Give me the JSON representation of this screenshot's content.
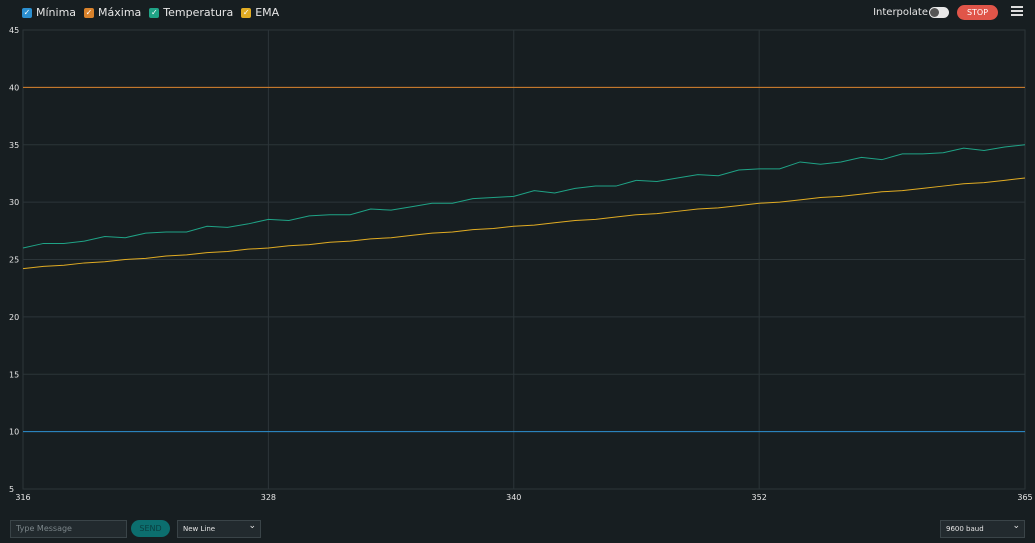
{
  "toolbar": {
    "interpolate_label": "Interpolate",
    "stop_button": "STOP"
  },
  "chart_data": {
    "type": "line",
    "x": [
      316,
      317,
      318,
      319,
      320,
      321,
      322,
      323,
      324,
      325,
      326,
      327,
      328,
      329,
      330,
      331,
      332,
      333,
      334,
      335,
      336,
      337,
      338,
      339,
      340,
      341,
      342,
      343,
      344,
      345,
      346,
      347,
      348,
      349,
      350,
      351,
      352,
      353,
      354,
      355,
      356,
      357,
      358,
      359,
      360,
      361,
      362,
      363,
      364,
      365
    ],
    "xlim": [
      316,
      365
    ],
    "xticks": [
      316,
      328,
      340,
      352,
      365
    ],
    "ylim": [
      5,
      45
    ],
    "yticks": [
      5,
      10,
      15,
      20,
      25,
      30,
      35,
      40,
      45
    ],
    "grid": true,
    "series": [
      {
        "name": "Mínima",
        "color": "#2b8fd0",
        "values": [
          10,
          10,
          10,
          10,
          10,
          10,
          10,
          10,
          10,
          10,
          10,
          10,
          10,
          10,
          10,
          10,
          10,
          10,
          10,
          10,
          10,
          10,
          10,
          10,
          10,
          10,
          10,
          10,
          10,
          10,
          10,
          10,
          10,
          10,
          10,
          10,
          10,
          10,
          10,
          10,
          10,
          10,
          10,
          10,
          10,
          10,
          10,
          10,
          10,
          10
        ]
      },
      {
        "name": "Máxima",
        "color": "#d9822b",
        "values": [
          40,
          40,
          40,
          40,
          40,
          40,
          40,
          40,
          40,
          40,
          40,
          40,
          40,
          40,
          40,
          40,
          40,
          40,
          40,
          40,
          40,
          40,
          40,
          40,
          40,
          40,
          40,
          40,
          40,
          40,
          40,
          40,
          40,
          40,
          40,
          40,
          40,
          40,
          40,
          40,
          40,
          40,
          40,
          40,
          40,
          40,
          40,
          40,
          40,
          40
        ]
      },
      {
        "name": "Temperatura",
        "color": "#1fa386",
        "values": [
          26.0,
          26.4,
          26.4,
          26.6,
          27.0,
          26.9,
          27.3,
          27.4,
          27.4,
          27.9,
          27.8,
          28.1,
          28.5,
          28.4,
          28.8,
          28.9,
          28.9,
          29.4,
          29.3,
          29.6,
          29.9,
          29.9,
          30.3,
          30.4,
          30.5,
          31.0,
          30.8,
          31.2,
          31.4,
          31.4,
          31.9,
          31.8,
          32.1,
          32.4,
          32.3,
          32.8,
          32.9,
          32.9,
          33.5,
          33.3,
          33.5,
          33.9,
          33.7,
          34.2,
          34.2,
          34.3,
          34.7,
          34.5,
          34.8,
          35.0
        ]
      },
      {
        "name": "EMA",
        "color": "#e1ac23",
        "values": [
          24.2,
          24.4,
          24.5,
          24.7,
          24.8,
          25.0,
          25.1,
          25.3,
          25.4,
          25.6,
          25.7,
          25.9,
          26.0,
          26.2,
          26.3,
          26.5,
          26.6,
          26.8,
          26.9,
          27.1,
          27.3,
          27.4,
          27.6,
          27.7,
          27.9,
          28.0,
          28.2,
          28.4,
          28.5,
          28.7,
          28.9,
          29.0,
          29.2,
          29.4,
          29.5,
          29.7,
          29.9,
          30.0,
          30.2,
          30.4,
          30.5,
          30.7,
          30.9,
          31.0,
          31.2,
          31.4,
          31.6,
          31.7,
          31.9,
          32.1
        ]
      }
    ]
  },
  "footer": {
    "message_placeholder": "Type Message",
    "send_button": "SEND",
    "line_ending": "New Line",
    "baud_rate": "9600 baud"
  }
}
